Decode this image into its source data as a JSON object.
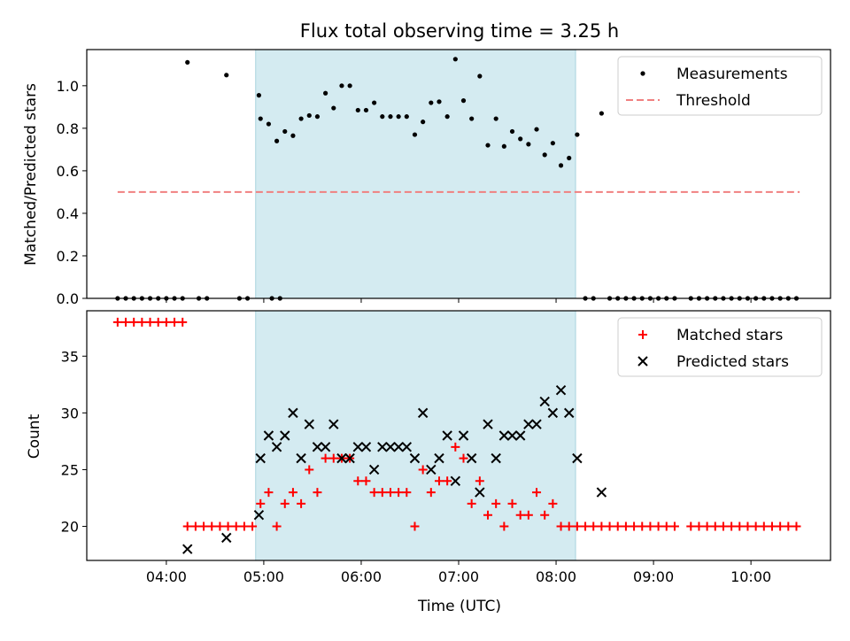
{
  "chart_data": [
    {
      "type": "scatter",
      "title": "Flux total observing time = 3.25 h",
      "xlabel": "",
      "ylabel": "Matched/Predicted stars",
      "ylim": [
        0,
        1.17
      ],
      "xlim": [
        "03:11",
        "10:49"
      ],
      "yticks": [
        "0.0",
        "0.2",
        "0.4",
        "0.6",
        "0.8",
        "1.0"
      ],
      "shaded_span": [
        "04:55",
        "08:12"
      ],
      "shade_color": "#d4ebf1",
      "legend_position": "top-right",
      "series": [
        {
          "name": "Measurements",
          "marker": "dot",
          "color": "#000000",
          "points": [
            [
              "03:30",
              0
            ],
            [
              "03:35",
              0
            ],
            [
              "03:40",
              0
            ],
            [
              "03:45",
              0
            ],
            [
              "03:50",
              0
            ],
            [
              "03:55",
              0
            ],
            [
              "04:00",
              0
            ],
            [
              "04:05",
              0
            ],
            [
              "04:10",
              0
            ],
            [
              "04:13",
              1.11
            ],
            [
              "04:20",
              0
            ],
            [
              "04:25",
              0
            ],
            [
              "04:37",
              1.05
            ],
            [
              "04:45",
              0
            ],
            [
              "04:50",
              0
            ],
            [
              "04:57",
              0.955
            ],
            [
              "05:05",
              0
            ],
            [
              "05:10",
              0
            ],
            [
              "04:58",
              0.845
            ],
            [
              "05:03",
              0.82
            ],
            [
              "05:08",
              0.74
            ],
            [
              "05:13",
              0.785
            ],
            [
              "05:18",
              0.765
            ],
            [
              "05:23",
              0.845
            ],
            [
              "05:28",
              0.86
            ],
            [
              "05:33",
              0.855
            ],
            [
              "05:38",
              0.965
            ],
            [
              "05:43",
              0.895
            ],
            [
              "05:48",
              1.0
            ],
            [
              "05:53",
              1.0
            ],
            [
              "05:58",
              0.885
            ],
            [
              "06:03",
              0.885
            ],
            [
              "06:08",
              0.92
            ],
            [
              "06:13",
              0.855
            ],
            [
              "06:18",
              0.855
            ],
            [
              "06:23",
              0.855
            ],
            [
              "06:28",
              0.855
            ],
            [
              "06:33",
              0.77
            ],
            [
              "06:38",
              0.83
            ],
            [
              "06:43",
              0.92
            ],
            [
              "06:48",
              0.925
            ],
            [
              "06:53",
              0.855
            ],
            [
              "06:58",
              1.125
            ],
            [
              "07:03",
              0.93
            ],
            [
              "07:08",
              0.845
            ],
            [
              "07:13",
              1.045
            ],
            [
              "07:18",
              0.72
            ],
            [
              "07:23",
              0.845
            ],
            [
              "07:28",
              0.715
            ],
            [
              "07:33",
              0.785
            ],
            [
              "07:38",
              0.75
            ],
            [
              "07:43",
              0.725
            ],
            [
              "07:48",
              0.795
            ],
            [
              "07:53",
              0.675
            ],
            [
              "07:58",
              0.73
            ],
            [
              "08:03",
              0.625
            ],
            [
              "08:08",
              0.66
            ],
            [
              "08:13",
              0.77
            ],
            [
              "08:18",
              0
            ],
            [
              "08:23",
              0
            ],
            [
              "08:28",
              0.87
            ],
            [
              "08:33",
              0
            ],
            [
              "08:38",
              0
            ],
            [
              "08:43",
              0
            ],
            [
              "08:48",
              0
            ],
            [
              "08:53",
              0
            ],
            [
              "08:58",
              0
            ],
            [
              "09:03",
              0
            ],
            [
              "09:08",
              0
            ],
            [
              "09:13",
              0
            ],
            [
              "09:23",
              0
            ],
            [
              "09:28",
              0
            ],
            [
              "09:33",
              0
            ],
            [
              "09:38",
              0
            ],
            [
              "09:43",
              0
            ],
            [
              "09:48",
              0
            ],
            [
              "09:53",
              0
            ],
            [
              "09:58",
              0
            ],
            [
              "10:03",
              0
            ],
            [
              "10:08",
              0
            ],
            [
              "10:13",
              0
            ],
            [
              "10:18",
              0
            ],
            [
              "10:23",
              0
            ],
            [
              "10:28",
              0
            ]
          ]
        },
        {
          "name": "Threshold",
          "marker": "dashed-line",
          "color": "#f08080",
          "x": [
            "03:30",
            "10:30"
          ],
          "values": [
            0.5,
            0.5
          ]
        }
      ]
    },
    {
      "type": "scatter",
      "title": "",
      "xlabel": "Time (UTC)",
      "ylabel": "Count",
      "ylim": [
        17,
        39
      ],
      "xlim": [
        "03:11",
        "10:49"
      ],
      "yticks": [
        "20",
        "25",
        "30",
        "35"
      ],
      "xticks": [
        "04:00",
        "05:00",
        "06:00",
        "07:00",
        "08:00",
        "09:00",
        "10:00"
      ],
      "shaded_span": [
        "04:55",
        "08:12"
      ],
      "shade_color": "#d4ebf1",
      "legend_position": "top-right",
      "series": [
        {
          "name": "Matched stars",
          "marker": "plus",
          "color": "#ff0000",
          "points": [
            [
              "03:30",
              38
            ],
            [
              "03:35",
              38
            ],
            [
              "03:40",
              38
            ],
            [
              "03:45",
              38
            ],
            [
              "03:50",
              38
            ],
            [
              "03:55",
              38
            ],
            [
              "04:00",
              38
            ],
            [
              "04:05",
              38
            ],
            [
              "04:10",
              38
            ],
            [
              "04:13",
              20
            ],
            [
              "04:18",
              20
            ],
            [
              "04:23",
              20
            ],
            [
              "04:28",
              20
            ],
            [
              "04:33",
              20
            ],
            [
              "04:38",
              20
            ],
            [
              "04:43",
              20
            ],
            [
              "04:48",
              20
            ],
            [
              "04:53",
              20
            ],
            [
              "04:58",
              22
            ],
            [
              "05:03",
              23
            ],
            [
              "05:08",
              20
            ],
            [
              "05:13",
              22
            ],
            [
              "05:18",
              23
            ],
            [
              "05:23",
              22
            ],
            [
              "05:28",
              25
            ],
            [
              "05:33",
              23
            ],
            [
              "05:38",
              26
            ],
            [
              "05:43",
              26
            ],
            [
              "05:48",
              26
            ],
            [
              "05:53",
              26
            ],
            [
              "05:58",
              24
            ],
            [
              "06:03",
              24
            ],
            [
              "06:08",
              23
            ],
            [
              "06:13",
              23
            ],
            [
              "06:18",
              23
            ],
            [
              "06:23",
              23
            ],
            [
              "06:28",
              23
            ],
            [
              "06:33",
              20
            ],
            [
              "06:38",
              25
            ],
            [
              "06:43",
              23
            ],
            [
              "06:48",
              24
            ],
            [
              "06:53",
              24
            ],
            [
              "06:58",
              27
            ],
            [
              "07:03",
              26
            ],
            [
              "07:08",
              22
            ],
            [
              "07:13",
              24
            ],
            [
              "07:18",
              21
            ],
            [
              "07:23",
              22
            ],
            [
              "07:28",
              20
            ],
            [
              "07:33",
              22
            ],
            [
              "07:38",
              21
            ],
            [
              "07:43",
              21
            ],
            [
              "07:48",
              23
            ],
            [
              "07:53",
              21
            ],
            [
              "07:58",
              22
            ],
            [
              "08:03",
              20
            ],
            [
              "08:08",
              20
            ],
            [
              "08:13",
              20
            ],
            [
              "08:18",
              20
            ],
            [
              "08:23",
              20
            ],
            [
              "08:28",
              20
            ],
            [
              "08:33",
              20
            ],
            [
              "08:38",
              20
            ],
            [
              "08:43",
              20
            ],
            [
              "08:48",
              20
            ],
            [
              "08:53",
              20
            ],
            [
              "08:58",
              20
            ],
            [
              "09:03",
              20
            ],
            [
              "09:08",
              20
            ],
            [
              "09:13",
              20
            ],
            [
              "09:23",
              20
            ],
            [
              "09:28",
              20
            ],
            [
              "09:33",
              20
            ],
            [
              "09:38",
              20
            ],
            [
              "09:43",
              20
            ],
            [
              "09:48",
              20
            ],
            [
              "09:53",
              20
            ],
            [
              "09:58",
              20
            ],
            [
              "10:03",
              20
            ],
            [
              "10:08",
              20
            ],
            [
              "10:13",
              20
            ],
            [
              "10:18",
              20
            ],
            [
              "10:23",
              20
            ],
            [
              "10:28",
              20
            ]
          ]
        },
        {
          "name": "Predicted stars",
          "marker": "x",
          "color": "#000000",
          "points": [
            [
              "04:13",
              18
            ],
            [
              "04:37",
              19
            ],
            [
              "04:57",
              21
            ],
            [
              "04:58",
              26
            ],
            [
              "05:03",
              28
            ],
            [
              "05:08",
              27
            ],
            [
              "05:13",
              28
            ],
            [
              "05:18",
              30
            ],
            [
              "05:23",
              26
            ],
            [
              "05:28",
              29
            ],
            [
              "05:33",
              27
            ],
            [
              "05:38",
              27
            ],
            [
              "05:43",
              29
            ],
            [
              "05:48",
              26
            ],
            [
              "05:53",
              26
            ],
            [
              "05:58",
              27
            ],
            [
              "06:03",
              27
            ],
            [
              "06:08",
              25
            ],
            [
              "06:13",
              27
            ],
            [
              "06:18",
              27
            ],
            [
              "06:23",
              27
            ],
            [
              "06:28",
              27
            ],
            [
              "06:33",
              26
            ],
            [
              "06:38",
              30
            ],
            [
              "06:43",
              25
            ],
            [
              "06:48",
              26
            ],
            [
              "06:53",
              28
            ],
            [
              "06:58",
              24
            ],
            [
              "07:03",
              28
            ],
            [
              "07:08",
              26
            ],
            [
              "07:13",
              23
            ],
            [
              "07:18",
              29
            ],
            [
              "07:23",
              26
            ],
            [
              "07:28",
              28
            ],
            [
              "07:33",
              28
            ],
            [
              "07:38",
              28
            ],
            [
              "07:43",
              29
            ],
            [
              "07:48",
              29
            ],
            [
              "07:53",
              31
            ],
            [
              "07:58",
              30
            ],
            [
              "08:03",
              32
            ],
            [
              "08:08",
              30
            ],
            [
              "08:13",
              26
            ],
            [
              "08:28",
              23
            ]
          ]
        }
      ]
    }
  ]
}
